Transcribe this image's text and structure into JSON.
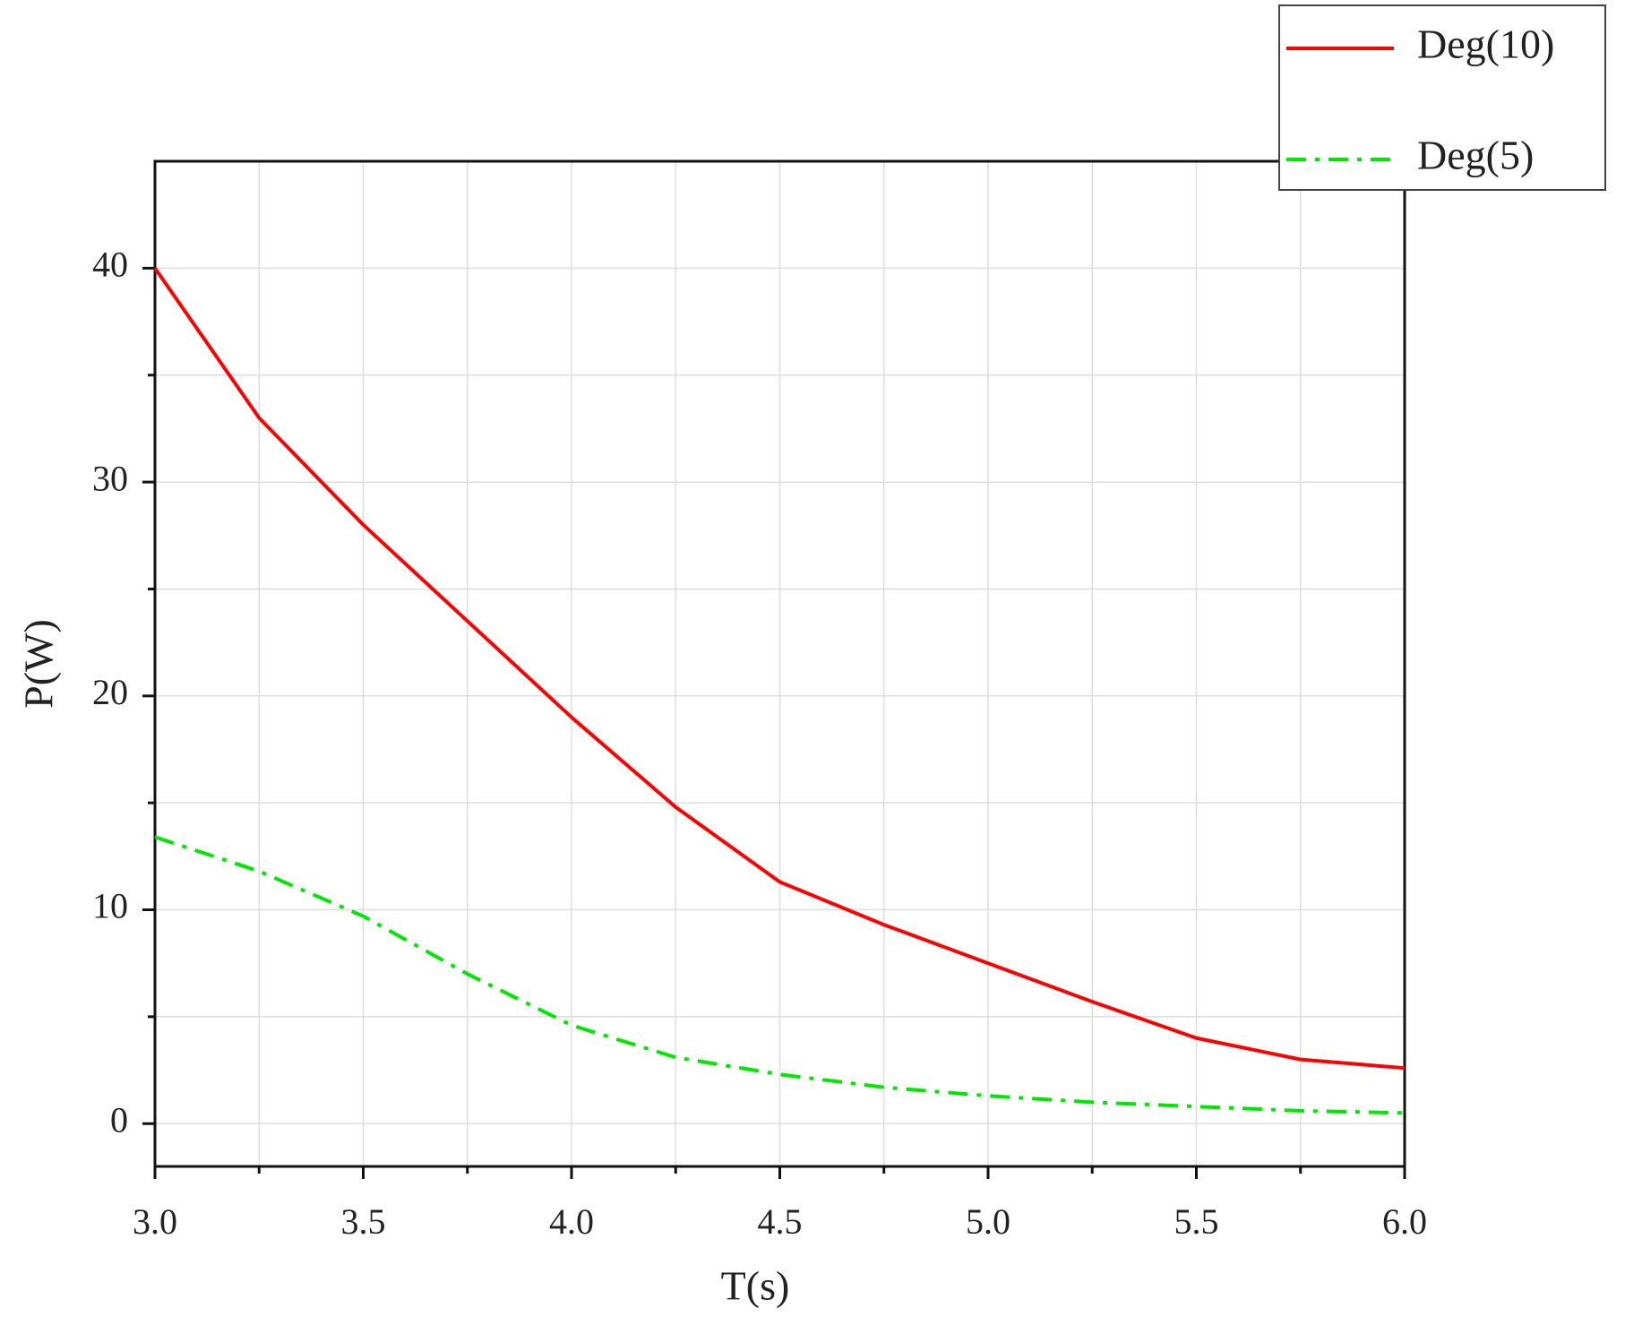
{
  "chart_data": {
    "type": "line",
    "x_label": "T(s)",
    "y_label": "P(W)",
    "x": [
      3.0,
      3.25,
      3.5,
      3.75,
      4.0,
      4.25,
      4.5,
      4.75,
      5.0,
      5.25,
      5.5,
      5.75,
      6.0
    ],
    "series": [
      {
        "name": "Deg(10)",
        "color": "#ff0000",
        "dash": "solid",
        "values": [
          40,
          33,
          28,
          23.5,
          19,
          14.8,
          11.3,
          9.3,
          7.5,
          5.7,
          4,
          3.0,
          2.6
        ]
      },
      {
        "name": "Deg(5)",
        "color": "#00e600",
        "dash": "dashdot",
        "values": [
          13.4,
          11.8,
          9.7,
          7,
          4.6,
          3.1,
          2.3,
          1.7,
          1.3,
          1.0,
          0.8,
          0.6,
          0.5
        ]
      }
    ],
    "xlim": [
      3,
      6
    ],
    "xticks": [
      {
        "value": 3,
        "label": "3.0"
      },
      {
        "value": 3.5,
        "label": "3.5"
      },
      {
        "value": 4,
        "label": "4.0"
      },
      {
        "value": 4.5,
        "label": "4.5"
      },
      {
        "value": 5,
        "label": "5.0"
      },
      {
        "value": 5.5,
        "label": "5.5"
      },
      {
        "value": 6,
        "label": "6.0"
      }
    ],
    "xminorticks": [
      3.25,
      3.75,
      4.25,
      4.75,
      5.25,
      5.75
    ],
    "ylim": [
      -2,
      45
    ],
    "yticks": [
      0,
      10,
      20,
      30,
      40
    ],
    "yminorticks": [
      5,
      15,
      25,
      35
    ],
    "grid": true,
    "legend": "upper right"
  }
}
